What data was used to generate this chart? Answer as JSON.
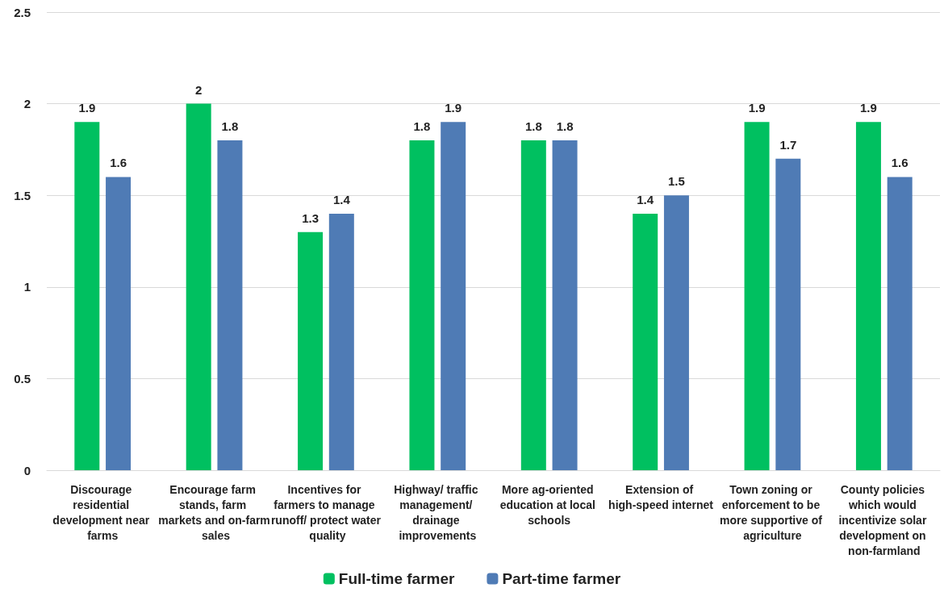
{
  "chart_data": {
    "type": "bar",
    "categories": [
      "Discourage residential development near farms",
      "Encourage farm stands, farm markets and on-farm sales",
      "Incentives for farmers to manage runoff/ protect water quality",
      "Highway/ traffic management/ drainage improvements",
      "More ag-oriented education at local schools",
      "Extension of high-speed internet",
      "Town zoning or enforcement to be more supportive of agriculture",
      "County policies which would incentivize solar development on non-farmland"
    ],
    "series": [
      {
        "name": "Full-time farmer",
        "color": "#00c060",
        "values": [
          1.9,
          2,
          1.3,
          1.8,
          1.8,
          1.4,
          1.9,
          1.9
        ]
      },
      {
        "name": "Part-time farmer",
        "color": "#4f7bb5",
        "values": [
          1.6,
          1.8,
          1.4,
          1.9,
          1.8,
          1.5,
          1.7,
          1.6
        ]
      }
    ],
    "ylim": [
      0,
      2.5
    ],
    "yticks": [
      0,
      0.5,
      1,
      1.5,
      2,
      2.5
    ],
    "grid": "y",
    "legend": "bottom",
    "data_labels": true
  }
}
